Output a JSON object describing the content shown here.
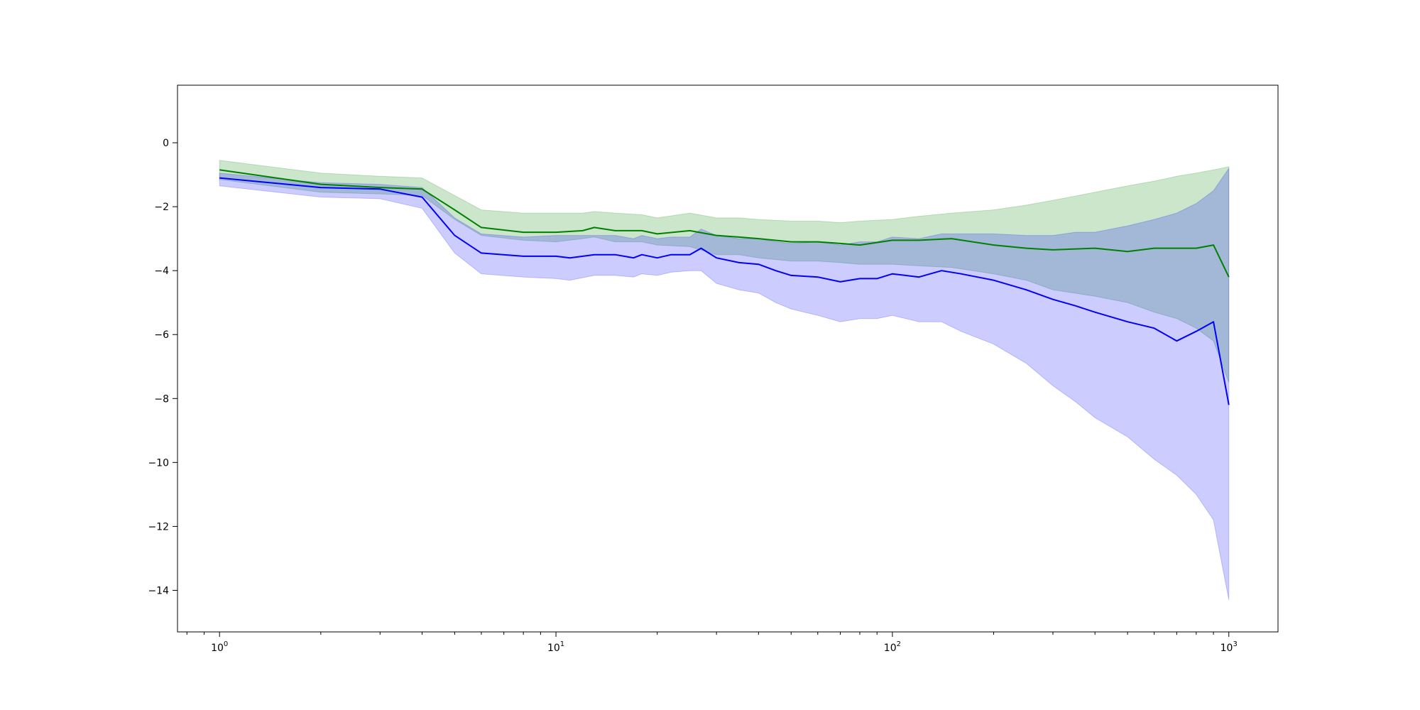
{
  "chart_data": {
    "type": "line",
    "x_scale": "log",
    "xlim": [
      0.75,
      1400
    ],
    "ylim": [
      -15.3,
      1.8
    ],
    "grid": false,
    "legend": "none",
    "x_ticks": [
      {
        "value": 1,
        "base": "10",
        "exp": "0"
      },
      {
        "value": 10,
        "base": "10",
        "exp": "1"
      },
      {
        "value": 100,
        "base": "10",
        "exp": "2"
      },
      {
        "value": 1000,
        "base": "10",
        "exp": "3"
      }
    ],
    "y_ticks": [
      {
        "value": 0,
        "label": "0"
      },
      {
        "value": -2,
        "label": "−2"
      },
      {
        "value": -4,
        "label": "−4"
      },
      {
        "value": -6,
        "label": "−6"
      },
      {
        "value": -8,
        "label": "−8"
      },
      {
        "value": -10,
        "label": "−10"
      },
      {
        "value": -12,
        "label": "−12"
      },
      {
        "value": -14,
        "label": "−14"
      }
    ],
    "series": [
      {
        "color": "#008000",
        "band_color": "#008000",
        "band_opacity": 0.2,
        "x": [
          1,
          2,
          3,
          4,
          5,
          6,
          8,
          10,
          12,
          13,
          15,
          18,
          20,
          25,
          30,
          35,
          40,
          50,
          60,
          70,
          80,
          100,
          120,
          150,
          200,
          250,
          300,
          400,
          500,
          600,
          700,
          800,
          900,
          1000
        ],
        "y": [
          -0.85,
          -1.3,
          -1.4,
          -1.45,
          -2.1,
          -2.65,
          -2.8,
          -2.8,
          -2.75,
          -2.65,
          -2.75,
          -2.75,
          -2.85,
          -2.75,
          -2.9,
          -2.95,
          -3.0,
          -3.1,
          -3.1,
          -3.15,
          -3.2,
          -3.05,
          -3.05,
          -3.0,
          -3.2,
          -3.3,
          -3.35,
          -3.3,
          -3.4,
          -3.3,
          -3.3,
          -3.3,
          -3.2,
          -4.2
        ],
        "lower": [
          -1.15,
          -1.55,
          -1.6,
          -1.65,
          -2.4,
          -2.9,
          -3.05,
          -3.1,
          -3.0,
          -2.95,
          -3.1,
          -3.1,
          -3.2,
          -3.25,
          -3.5,
          -3.5,
          -3.6,
          -3.7,
          -3.7,
          -3.75,
          -3.8,
          -3.8,
          -3.85,
          -3.9,
          -4.1,
          -4.3,
          -4.6,
          -4.8,
          -5.0,
          -5.3,
          -5.5,
          -5.8,
          -6.2,
          -7.5
        ],
        "upper": [
          -0.55,
          -0.95,
          -1.05,
          -1.1,
          -1.65,
          -2.1,
          -2.2,
          -2.2,
          -2.2,
          -2.15,
          -2.2,
          -2.25,
          -2.35,
          -2.2,
          -2.35,
          -2.35,
          -2.4,
          -2.45,
          -2.45,
          -2.5,
          -2.45,
          -2.4,
          -2.3,
          -2.2,
          -2.1,
          -1.95,
          -1.8,
          -1.55,
          -1.35,
          -1.2,
          -1.05,
          -0.95,
          -0.85,
          -0.75
        ]
      },
      {
        "color": "#0000ff",
        "band_color": "#0000ff",
        "band_opacity": 0.2,
        "x": [
          1,
          2,
          3,
          4,
          5,
          6,
          8,
          10,
          11,
          13,
          15,
          17,
          18,
          20,
          22,
          25,
          27,
          30,
          35,
          40,
          45,
          50,
          60,
          70,
          80,
          90,
          100,
          120,
          140,
          160,
          200,
          250,
          300,
          350,
          400,
          500,
          600,
          700,
          800,
          900,
          1000
        ],
        "y": [
          -1.1,
          -1.4,
          -1.45,
          -1.7,
          -2.9,
          -3.45,
          -3.55,
          -3.55,
          -3.6,
          -3.5,
          -3.5,
          -3.6,
          -3.5,
          -3.6,
          -3.5,
          -3.5,
          -3.3,
          -3.6,
          -3.75,
          -3.8,
          -4.0,
          -4.15,
          -4.2,
          -4.35,
          -4.25,
          -4.25,
          -4.1,
          -4.2,
          -4.0,
          -4.1,
          -4.3,
          -4.6,
          -4.9,
          -5.1,
          -5.3,
          -5.6,
          -5.8,
          -6.2,
          -5.9,
          -5.6,
          -8.2
        ],
        "lower": [
          -1.35,
          -1.7,
          -1.75,
          -2.05,
          -3.45,
          -4.1,
          -4.2,
          -4.25,
          -4.3,
          -4.15,
          -4.15,
          -4.2,
          -4.1,
          -4.15,
          -4.05,
          -4.0,
          -4.0,
          -4.4,
          -4.6,
          -4.7,
          -5.0,
          -5.2,
          -5.4,
          -5.6,
          -5.5,
          -5.5,
          -5.4,
          -5.6,
          -5.6,
          -5.9,
          -6.3,
          -6.9,
          -7.6,
          -8.1,
          -8.6,
          -9.2,
          -9.9,
          -10.4,
          -11.0,
          -11.8,
          -14.3
        ],
        "upper": [
          -0.95,
          -1.25,
          -1.3,
          -1.4,
          -2.35,
          -2.85,
          -2.95,
          -2.9,
          -2.9,
          -2.9,
          -2.9,
          -3.0,
          -2.9,
          -3.0,
          -2.95,
          -2.95,
          -2.7,
          -2.9,
          -3.0,
          -3.0,
          -3.1,
          -3.15,
          -3.1,
          -3.2,
          -3.1,
          -3.1,
          -2.95,
          -3.0,
          -2.85,
          -2.85,
          -2.85,
          -2.9,
          -2.9,
          -2.8,
          -2.8,
          -2.6,
          -2.4,
          -2.2,
          -1.9,
          -1.5,
          -0.8
        ]
      }
    ]
  }
}
